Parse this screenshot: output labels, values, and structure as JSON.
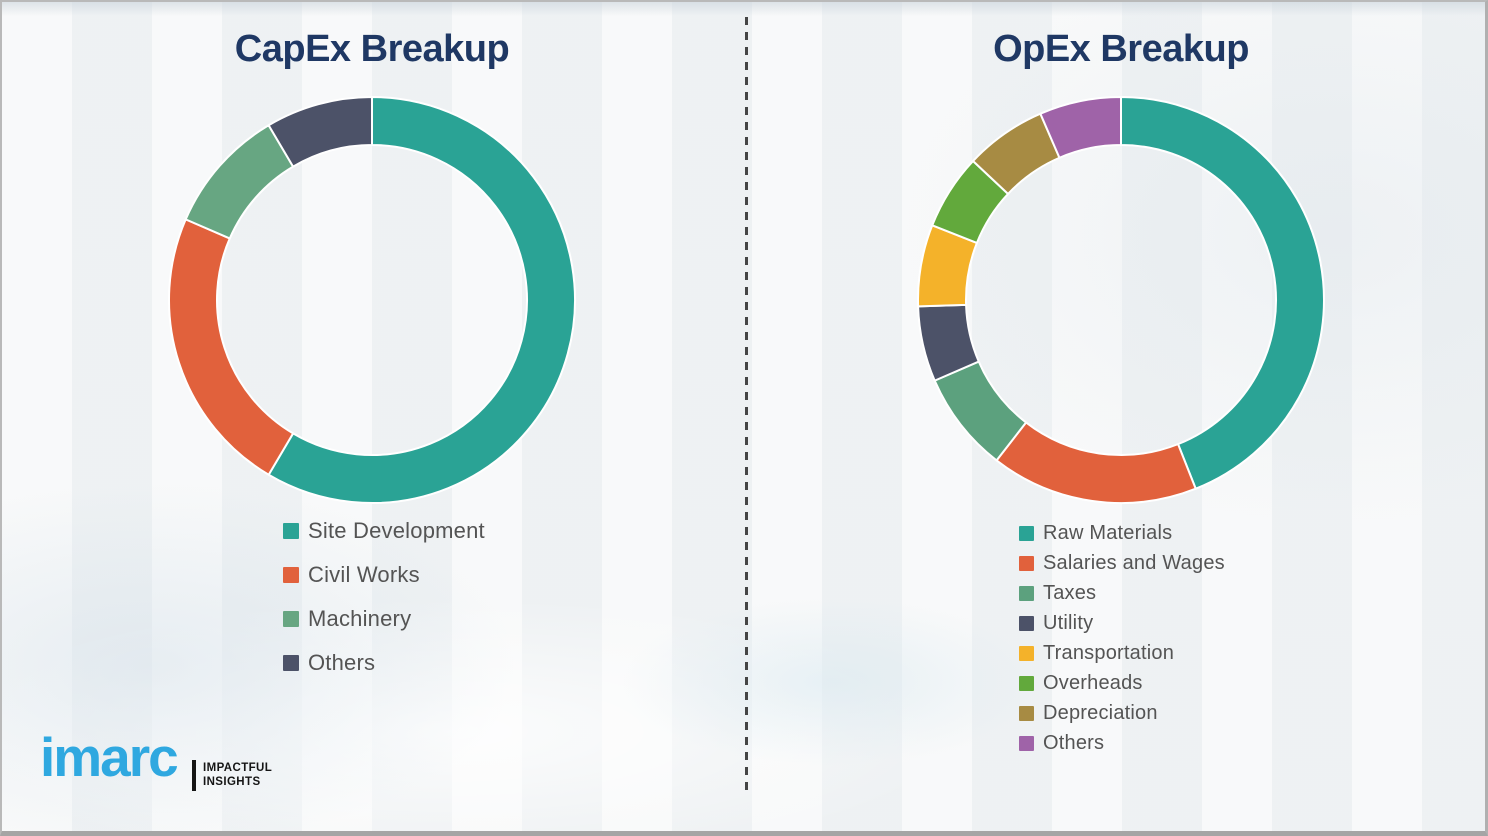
{
  "chart_data": [
    {
      "type": "pie",
      "subtype": "donut",
      "title": "CapEx Breakup",
      "labels": [
        "Site Development",
        "Civil Works",
        "Machinery",
        "Others"
      ],
      "values": [
        58.5,
        23,
        10,
        8.5
      ],
      "colors": [
        "#2AA395",
        "#E1613C",
        "#67A682",
        "#4C5268"
      ],
      "start_angle_deg": 0,
      "direction": "clockwise",
      "legend_position": "below-left",
      "data_labels": false
    },
    {
      "type": "pie",
      "subtype": "donut",
      "title": "OpEx Breakup",
      "labels": [
        "Raw Materials",
        "Salaries and Wages",
        "Taxes",
        "Utility",
        "Transportation",
        "Overheads",
        "Depreciation",
        "Others"
      ],
      "values": [
        44,
        16.5,
        8,
        6,
        6.5,
        6,
        6.5,
        6.5
      ],
      "colors": [
        "#2AA395",
        "#E1613C",
        "#5CA17E",
        "#4C5268",
        "#F4B22A",
        "#62A93C",
        "#A78B43",
        "#9F63A8"
      ],
      "start_angle_deg": 0,
      "direction": "clockwise",
      "legend_position": "below-left",
      "data_labels": false
    }
  ],
  "brand": {
    "logo_text": "imarc",
    "tagline_line1": "IMPACTFUL",
    "tagline_line2": "INSIGHTS",
    "logo_color": "#2FA8E0"
  },
  "style": {
    "title_color": "#1F3864",
    "legend_text_color": "#545454",
    "background_color": "#F2F4F5",
    "divider_color": "#454545",
    "segment_gap_color": "#FFFFFF"
  }
}
